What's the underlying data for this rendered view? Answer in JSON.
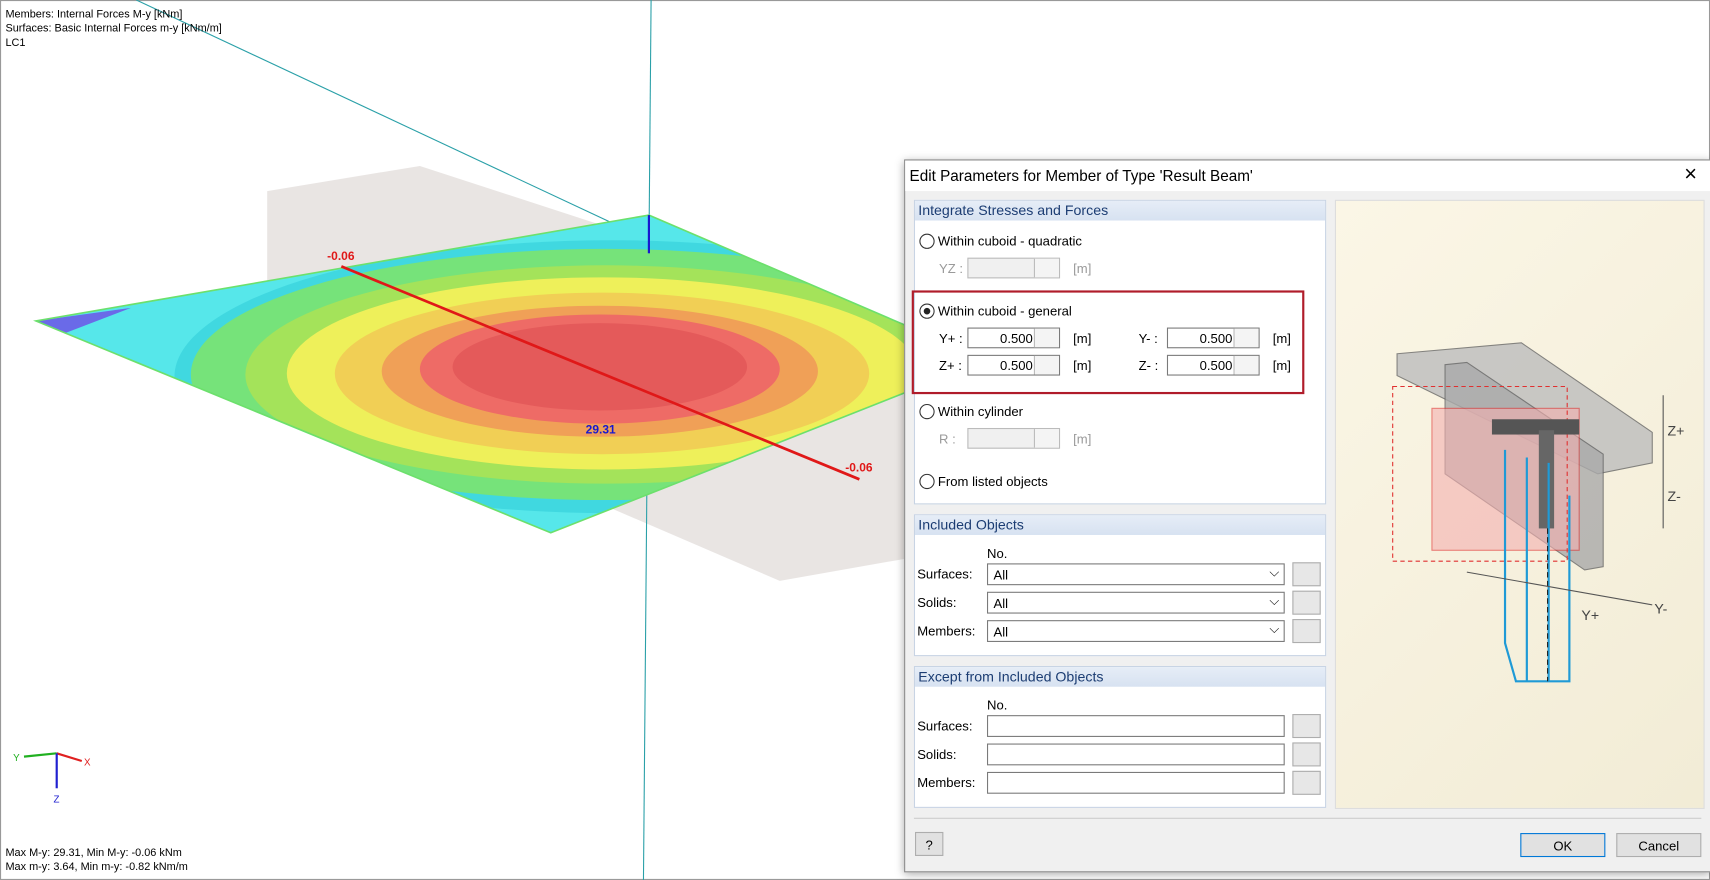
{
  "viewport": {
    "info": [
      "Members: Internal Forces M-y [kNm]",
      "Surfaces: Basic Internal Forces m-y [kNm/m]",
      "LC1"
    ],
    "labels": [
      "-0.06",
      "29.31",
      "-0.06"
    ],
    "axes": {
      "y": "Y",
      "x": "X",
      "z": "Z"
    },
    "summary": [
      "Max M-y: 29.31, Min M-y: -0.06 kNm",
      "Max m-y: 3.64, Min m-y: -0.82 kNm/m"
    ]
  },
  "dialog": {
    "title": "Edit Parameters for Member of Type 'Result Beam'",
    "integrate": {
      "heading": "Integrate Stresses and Forces",
      "options": [
        "Within cuboid - quadratic",
        "Within cuboid - general",
        "Within cylinder",
        "From listed objects"
      ],
      "yz": {
        "label": "YZ :",
        "unit": "[m]"
      },
      "general": [
        {
          "label": "Y+ :",
          "value": "0.500",
          "unit": "[m]"
        },
        {
          "label": "Y- :",
          "value": "0.500",
          "unit": "[m]"
        },
        {
          "label": "Z+ :",
          "value": "0.500",
          "unit": "[m]"
        },
        {
          "label": "Z- :",
          "value": "0.500",
          "unit": "[m]"
        }
      ],
      "r": {
        "label": "R :",
        "unit": "[m]"
      }
    },
    "included": {
      "heading": "Included Objects",
      "column": "No.",
      "rows": [
        {
          "label": "Surfaces:",
          "value": "All"
        },
        {
          "label": "Solids:",
          "value": "All"
        },
        {
          "label": "Members:",
          "value": "All"
        }
      ]
    },
    "except": {
      "heading": "Except from Included Objects",
      "column": "No.",
      "rows": [
        "Surfaces:",
        "Solids:",
        "Members:"
      ]
    },
    "figure": {
      "z_plus": "Z+",
      "z_minus": "Z-",
      "y_plus": "Y+",
      "y_minus": "Y-"
    },
    "buttons": {
      "ok": "OK",
      "cancel": "Cancel"
    }
  }
}
